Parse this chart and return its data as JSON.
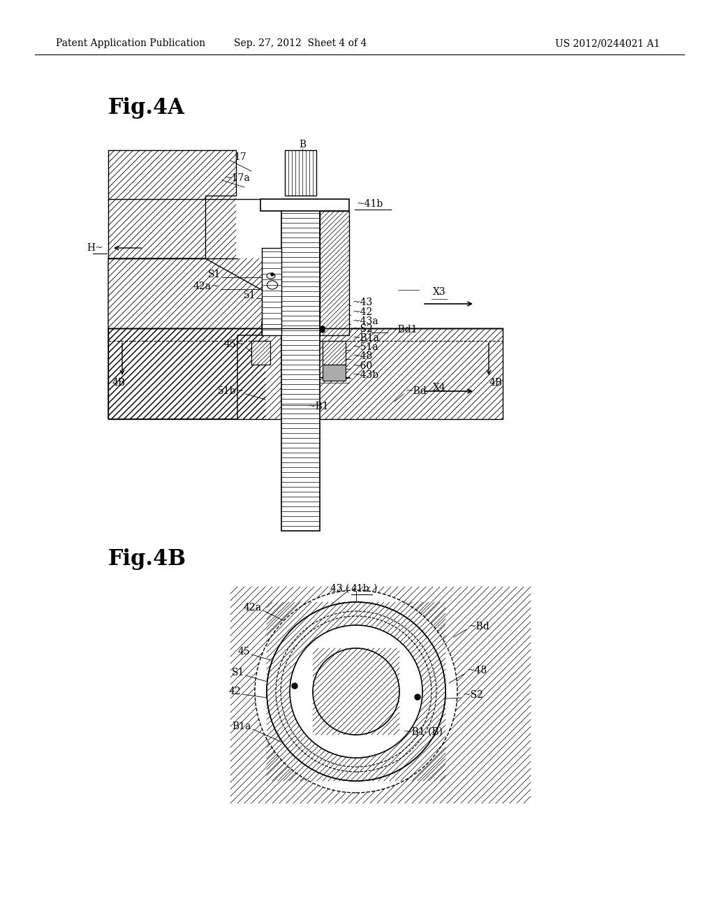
{
  "bg_color": "#ffffff",
  "line_color": "#000000",
  "header_left": "Patent Application Publication",
  "header_mid": "Sep. 27, 2012  Sheet 4 of 4",
  "header_right": "US 2012/0244021 A1",
  "fig4a_title": "Fig.4A",
  "fig4b_title": "Fig.4B"
}
